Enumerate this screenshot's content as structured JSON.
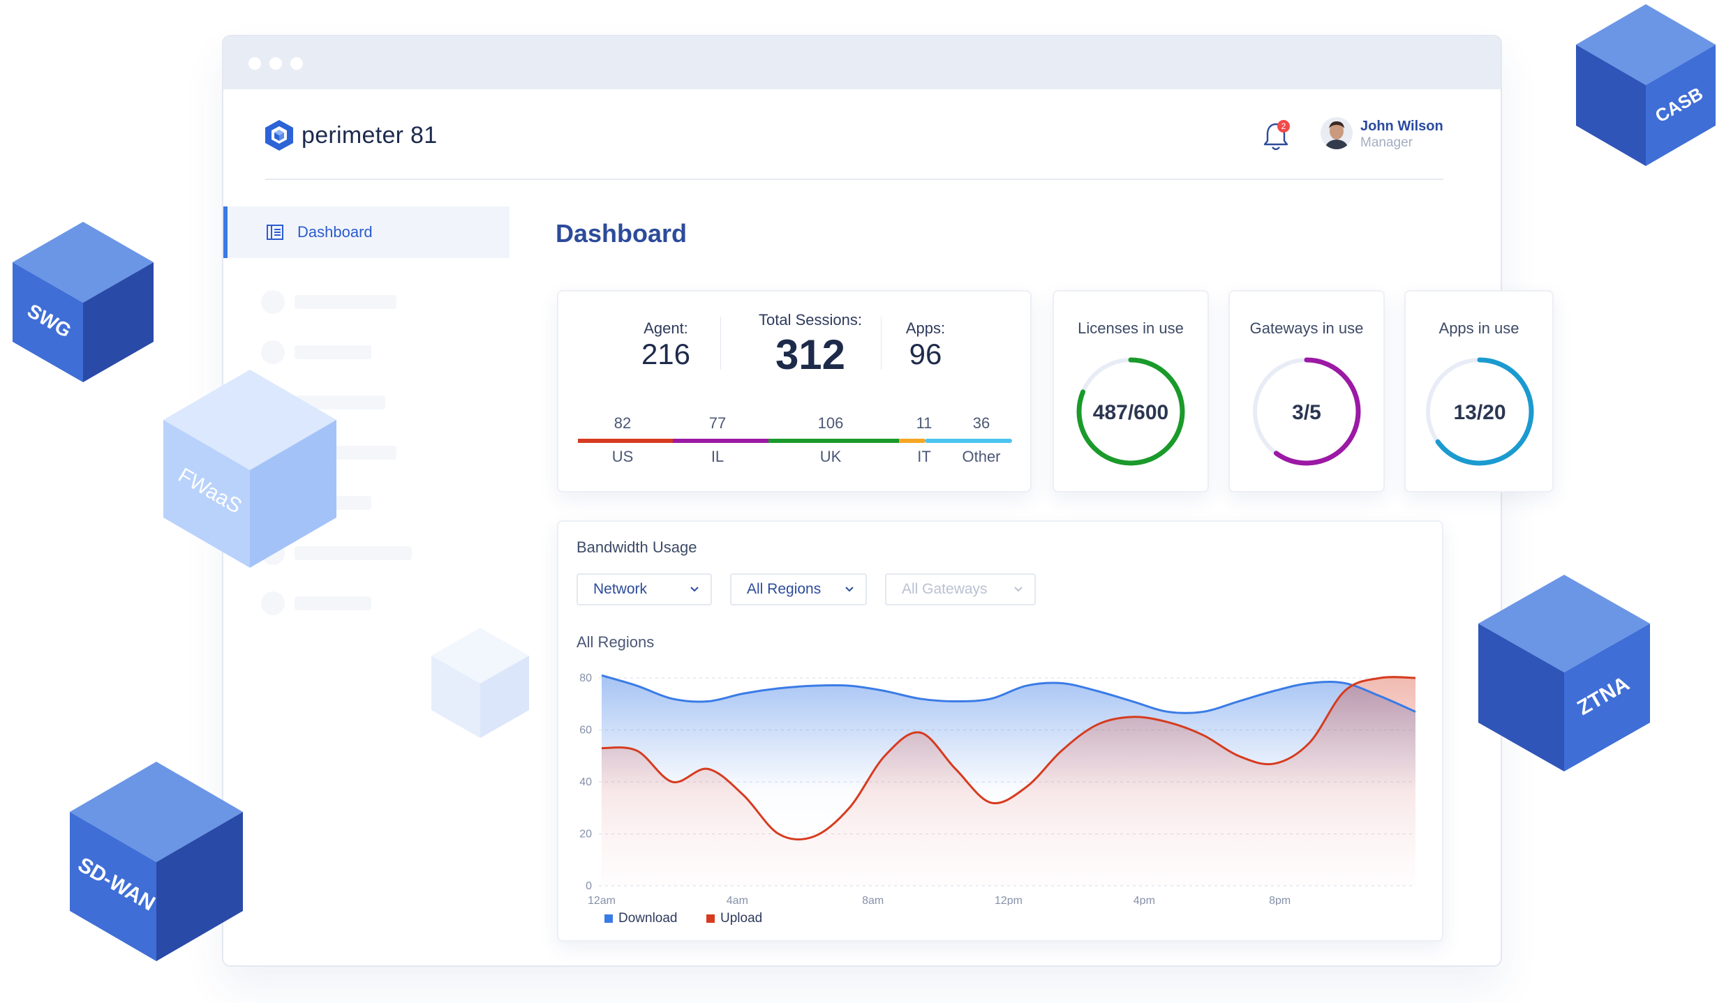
{
  "window": {
    "dots": 3
  },
  "brand": {
    "name": "perimeter 81"
  },
  "header": {
    "notifications_count": "2",
    "user_name": "John Wilson",
    "user_role": "Manager"
  },
  "sidebar": {
    "active_item": "Dashboard"
  },
  "page": {
    "title": "Dashboard"
  },
  "summary": {
    "agent_label": "Agent:",
    "agent_value": "216",
    "sessions_label": "Total Sessions:",
    "sessions_value": "312",
    "apps_label": "Apps:",
    "apps_value": "96",
    "regions": [
      {
        "count": "82",
        "name": "US",
        "color": "#d63b1f"
      },
      {
        "count": "77",
        "name": "IL",
        "color": "#9b19a4"
      },
      {
        "count": "106",
        "name": "UK",
        "color": "#1a9a2a"
      },
      {
        "count": "11",
        "name": "IT",
        "color": "#f5a623"
      },
      {
        "count": "36",
        "name": "Other",
        "color": "#4cc4f0"
      }
    ]
  },
  "gauges": [
    {
      "title": "Licenses in use",
      "value": "487/600",
      "used": 487,
      "total": 600,
      "color": "#1a9a2a"
    },
    {
      "title": "Gateways in use",
      "value": "3/5",
      "used": 3,
      "total": 5,
      "color": "#9b19a4"
    },
    {
      "title": "Apps in use",
      "value": "13/20",
      "used": 13,
      "total": 20,
      "color": "#1b9ad0"
    }
  ],
  "bandwidth": {
    "title": "Bandwidth Usage",
    "filters": [
      {
        "label": "Network",
        "disabled": false
      },
      {
        "label": "All Regions",
        "disabled": false
      },
      {
        "label": "All Gateways",
        "disabled": true
      }
    ],
    "subtitle": "All Regions"
  },
  "chart_data": {
    "type": "area",
    "x_ticks": [
      "12am",
      "4am",
      "8am",
      "12pm",
      "4pm",
      "8pm"
    ],
    "y_ticks": [
      "80",
      "60",
      "40",
      "20",
      "0"
    ],
    "ylim": [
      0,
      80
    ],
    "x": [
      0,
      1,
      2,
      3,
      4,
      5,
      6,
      7,
      8,
      9,
      10,
      11,
      12,
      13,
      14,
      15,
      16,
      17,
      18,
      19,
      20,
      21,
      22,
      23
    ],
    "series": [
      {
        "name": "Download",
        "color": "#3a7be6",
        "values": [
          81,
          77,
          72,
          71,
          74,
          76,
          77,
          77,
          75,
          72,
          71,
          72,
          77,
          78,
          75,
          71,
          67,
          67,
          71,
          75,
          78,
          78,
          73,
          67
        ]
      },
      {
        "name": "Upload",
        "color": "#d63b1f",
        "values": [
          53,
          52,
          40,
          45,
          35,
          20,
          19,
          30,
          50,
          59,
          45,
          32,
          38,
          52,
          62,
          65,
          63,
          58,
          50,
          47,
          55,
          75,
          80,
          80
        ]
      }
    ],
    "grid": "dashed-horizontal",
    "legend": "bottom-left"
  },
  "cubes": [
    {
      "label": "SWG",
      "style": "dark"
    },
    {
      "label": "FWaaS",
      "style": "light"
    },
    {
      "label": "SD-WAN",
      "style": "dark"
    },
    {
      "label": "CASB",
      "style": "dark"
    },
    {
      "label": "ZTNA",
      "style": "dark"
    }
  ]
}
